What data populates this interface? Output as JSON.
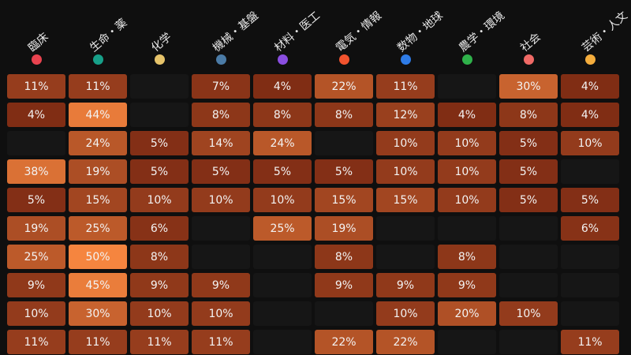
{
  "colors": {
    "background": "#0f0f0f",
    "empty_cell": "#161616",
    "low": "#6e1f0e",
    "high": "#f5853f",
    "text": "#f3f3f3"
  },
  "chart_data": {
    "type": "heatmap",
    "columns": [
      {
        "label": "臨床",
        "color": "#e8434f"
      },
      {
        "label": "生命・薬",
        "color": "#17a089"
      },
      {
        "label": "化学",
        "color": "#e6c36a"
      },
      {
        "label": "機械・基盤",
        "color": "#4b7ba6"
      },
      {
        "label": "材料・医工",
        "color": "#8a4ee0"
      },
      {
        "label": "電気・情報",
        "color": "#f2532e"
      },
      {
        "label": "数物・地球",
        "color": "#2e7be6"
      },
      {
        "label": "農学・環境",
        "color": "#2fb14a"
      },
      {
        "label": "社会",
        "color": "#f06a66"
      },
      {
        "label": "芸術・人文",
        "color": "#f4ad3d"
      }
    ],
    "rows": [
      [
        11,
        11,
        null,
        7,
        4,
        22,
        11,
        null,
        30,
        4
      ],
      [
        4,
        44,
        null,
        8,
        8,
        8,
        12,
        4,
        8,
        4
      ],
      [
        null,
        24,
        5,
        14,
        24,
        null,
        10,
        10,
        5,
        10
      ],
      [
        38,
        19,
        5,
        5,
        5,
        5,
        10,
        10,
        5,
        null
      ],
      [
        5,
        15,
        10,
        10,
        10,
        15,
        15,
        10,
        5,
        5
      ],
      [
        19,
        25,
        6,
        null,
        25,
        19,
        null,
        null,
        null,
        6
      ],
      [
        25,
        50,
        8,
        null,
        null,
        8,
        null,
        8,
        null,
        null
      ],
      [
        9,
        45,
        9,
        9,
        null,
        9,
        9,
        9,
        null,
        null
      ],
      [
        10,
        30,
        10,
        10,
        null,
        null,
        10,
        20,
        10,
        null
      ],
      [
        11,
        11,
        11,
        11,
        null,
        22,
        22,
        null,
        null,
        11
      ]
    ],
    "value_suffix": "%",
    "value_range": [
      0,
      50
    ]
  }
}
